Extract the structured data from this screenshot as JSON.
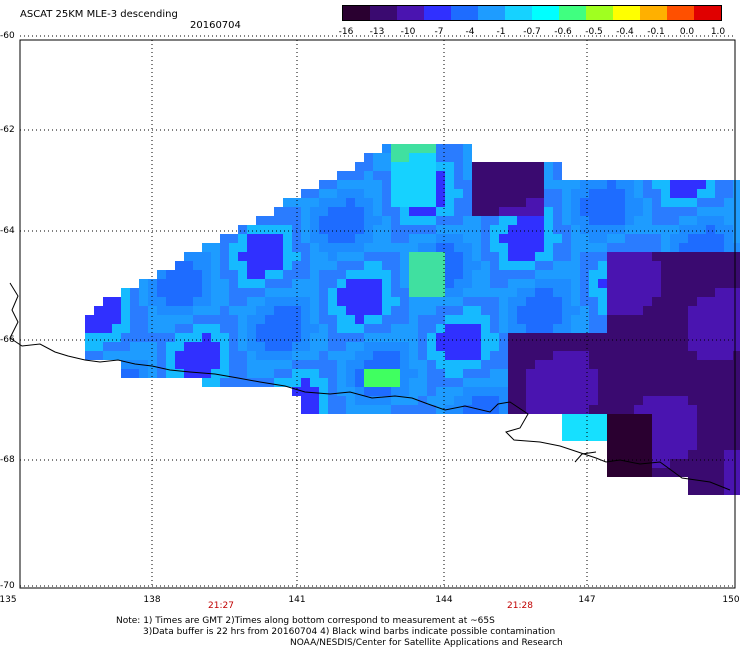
{
  "header": {
    "title": "ASCAT 25KM MLE-3 descending",
    "date": "20160704"
  },
  "legend": {
    "labels": [
      "-16",
      "-13",
      "-10",
      "-7",
      "-4",
      "-1",
      "-0.7",
      "-0.6",
      "-0.5",
      "-0.4",
      "-0.1",
      "0.0",
      "1.0"
    ],
    "colors": [
      "#2a0030",
      "#3a0a70",
      "#4a14b0",
      "#3030ff",
      "#1e6cff",
      "#1e9cff",
      "#16d2ff",
      "#00ffff",
      "#40ff80",
      "#a0ff20",
      "#ffff00",
      "#ffb000",
      "#ff5000",
      "#e00000"
    ]
  },
  "axes": {
    "lat_labels": [
      "-60",
      "-62",
      "-64",
      "-66",
      "-68",
      "-70"
    ],
    "lon_labels": [
      "135",
      "138",
      "141",
      "144",
      "147",
      "150"
    ],
    "time_labels": [
      "21:27",
      "21:28"
    ]
  },
  "notes": {
    "line1": "Note: 1) Times are GMT 2)Times along bottom correspond to measurement at ~65S",
    "line2": "3)Data buffer is 22 hrs from 20160704 4) Black wind barbs indicate possible contamination",
    "line3": "NOAA/NESDIS/Center for Satellite Applications and Research"
  }
}
